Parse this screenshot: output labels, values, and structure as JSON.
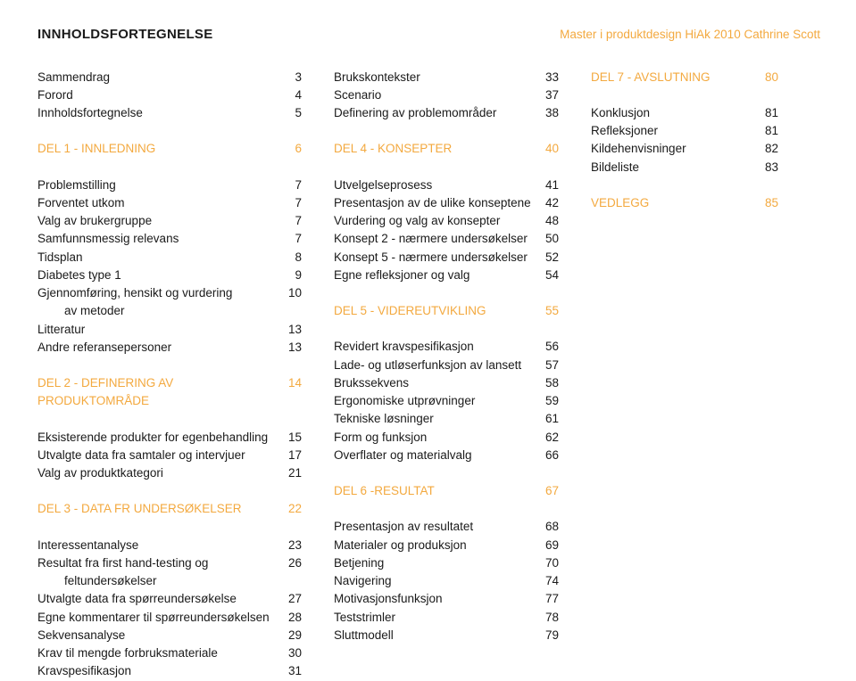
{
  "header": {
    "title": "INNHOLDSFORTEGNELSE",
    "subtitle": "Master i produktdesign HiAk 2010 Cathrine Scott"
  },
  "colors": {
    "accent": "#f3a93f",
    "text": "#1a1a1a",
    "background": "#ffffff"
  },
  "col1": [
    {
      "label": "Sammendrag",
      "num": "3"
    },
    {
      "label": "Forord",
      "num": "4"
    },
    {
      "label": "Innholdsfortegnelse",
      "num": "5"
    },
    {
      "blank": true
    },
    {
      "label": "DEL 1 - INNLEDNING",
      "num": "6",
      "accent": true
    },
    {
      "blank": true
    },
    {
      "label": "Problemstilling",
      "num": "7"
    },
    {
      "label": "Forventet utkom",
      "num": "7"
    },
    {
      "label": "Valg av brukergruppe",
      "num": "7"
    },
    {
      "label": "Samfunnsmessig relevans",
      "num": "7"
    },
    {
      "label": "Tidsplan",
      "num": "8"
    },
    {
      "label": "Diabetes type 1",
      "num": "9"
    },
    {
      "label": "Gjennomføring, hensikt og vurdering",
      "num": "10"
    },
    {
      "label": "        av metoder",
      "num": ""
    },
    {
      "label": "Litteratur",
      "num": "13"
    },
    {
      "label": "Andre referansepersoner",
      "num": "13"
    },
    {
      "blank": true
    },
    {
      "label": "DEL 2 - DEFINERING AV PRODUKTOMRÅDE",
      "num": "14",
      "accent": true
    },
    {
      "blank": true
    },
    {
      "label": "Eksisterende produkter for egenbehandling",
      "num": "15"
    },
    {
      "label": "Utvalgte data fra samtaler og intervjuer",
      "num": "17"
    },
    {
      "label": "Valg av produktkategori",
      "num": "21"
    },
    {
      "blank": true
    },
    {
      "label": "DEL 3 - DATA FR UNDERSØKELSER",
      "num": "22",
      "accent": true
    },
    {
      "blank": true
    },
    {
      "label": "Interessentanalyse",
      "num": "23"
    },
    {
      "label": "Resultat fra first hand-testing og",
      "num": "26"
    },
    {
      "label": "        feltundersøkelser",
      "num": ""
    },
    {
      "label": "Utvalgte data fra spørreundersøkelse",
      "num": "27"
    },
    {
      "label": "Egne kommentarer til spørreundersøkelsen",
      "num": "28"
    },
    {
      "label": "Sekvensanalyse",
      "num": "29"
    },
    {
      "label": "Krav til mengde forbruksmateriale",
      "num": "30"
    },
    {
      "label": "Kravspesifikasjon",
      "num": "31"
    }
  ],
  "col2": [
    {
      "label": "Brukskontekster",
      "num": "33"
    },
    {
      "label": "Scenario",
      "num": "37"
    },
    {
      "label": "Definering av problemområder",
      "num": "38"
    },
    {
      "blank": true
    },
    {
      "label": "DEL 4 - KONSEPTER",
      "num": "40",
      "accent": true
    },
    {
      "blank": true
    },
    {
      "label": "Utvelgelseprosess",
      "num": "41"
    },
    {
      "label": "Presentasjon av de ulike konseptene",
      "num": "42"
    },
    {
      "label": "Vurdering og valg av konsepter",
      "num": "48"
    },
    {
      "label": "Konsept 2 - nærmere undersøkelser",
      "num": "50"
    },
    {
      "label": "Konsept 5 - nærmere undersøkelser",
      "num": "52"
    },
    {
      "label": "Egne refleksjoner og valg",
      "num": "54"
    },
    {
      "blank": true
    },
    {
      "label": "DEL 5 - VIDEREUTVIKLING",
      "num": "55",
      "accent": true
    },
    {
      "blank": true
    },
    {
      "label": "Revidert kravspesifikasjon",
      "num": "56"
    },
    {
      "label": "Lade- og utløserfunksjon av lansett",
      "num": "57"
    },
    {
      "label": "Brukssekvens",
      "num": "58"
    },
    {
      "label": "Ergonomiske utprøvninger",
      "num": "59"
    },
    {
      "label": "Tekniske løsninger",
      "num": "61"
    },
    {
      "label": "Form og funksjon",
      "num": "62"
    },
    {
      "label": "Overflater og materialvalg",
      "num": "66"
    },
    {
      "blank": true
    },
    {
      "label": "DEL 6 -RESULTAT",
      "num": "67",
      "accent": true
    },
    {
      "blank": true
    },
    {
      "label": "Presentasjon av resultatet",
      "num": "68"
    },
    {
      "label": "Materialer og produksjon",
      "num": "69"
    },
    {
      "label": "Betjening",
      "num": "70"
    },
    {
      "label": "Navigering",
      "num": "74"
    },
    {
      "label": "Motivasjonsfunksjon",
      "num": "77"
    },
    {
      "label": "Teststrimler",
      "num": "78"
    },
    {
      "label": "Sluttmodell",
      "num": "79"
    }
  ],
  "col3": [
    {
      "label": "DEL 7 - AVSLUTNING",
      "num": "80",
      "accent": true
    },
    {
      "blank": true
    },
    {
      "label": "Konklusjon",
      "num": "81"
    },
    {
      "label": "Refleksjoner",
      "num": "81"
    },
    {
      "label": "Kildehenvisninger",
      "num": "82"
    },
    {
      "label": "Bildeliste",
      "num": "83"
    },
    {
      "blank": true
    },
    {
      "label": "VEDLEGG",
      "num": "85",
      "accent": true
    }
  ]
}
